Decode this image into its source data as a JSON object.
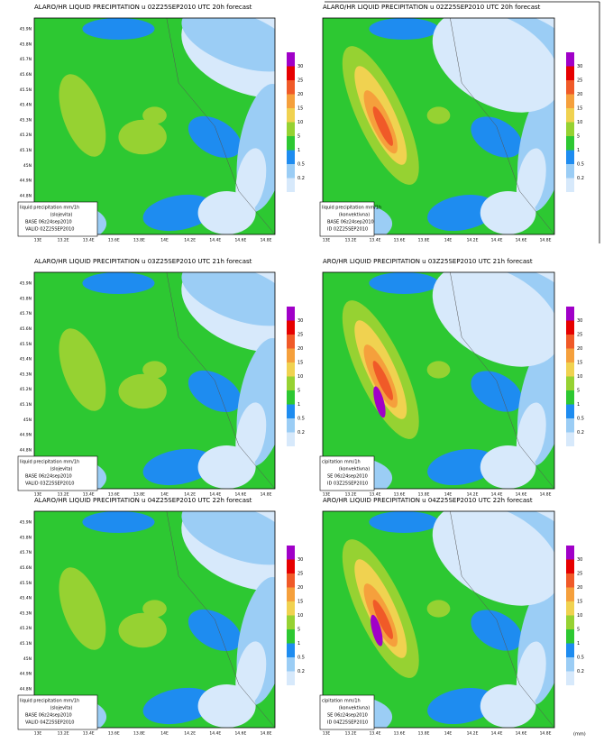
{
  "panels": [
    {
      "title": "ALARO/HR LIQUID PRECIPITATION u 02Z25SEP2010 UTC 20h forecast",
      "info": [
        "liquid precipitation mm/1h",
        "(slojevita)",
        "BASE 06z24sep2010",
        "VALID 02Z25SEP2010"
      ]
    },
    {
      "title": "ALARO/HR LIQUID PRECIPITATION u 02Z25SEP2010 UTC 20h forecast",
      "info": [
        "liquid precipitation mm/1h",
        "(konvektivna)",
        "BASE 06z24sep2010",
        "ID 02Z25SEP2010"
      ]
    },
    {
      "title": "ALARO/HR LIQUID PRECIPITATION u 03Z25SEP2010 UTC 21h forecast",
      "info": [
        "liquid precipitation mm/1h",
        "(slojevita)",
        "BASE 06z24sep2010",
        "VALID 03Z25SEP2010"
      ]
    },
    {
      "title": "ARO/HR LIQUID PRECIPITATION u 03Z25SEP2010 UTC 21h forecast",
      "info": [
        "cipitation mm/1h",
        "(konvektivna)",
        "SE 06z24sep2010",
        "ID 03Z25SEP2010"
      ]
    },
    {
      "title": "ALARO/HR LIQUID PRECIPITATION u 04Z25SEP2010 UTC 22h forecast",
      "info": [
        "liquid precipitation mm/1h",
        "(slojevita)",
        "BASE 06z24sep2010",
        "VALID 04Z25SEP2010"
      ]
    },
    {
      "title": "ARO/HR LIQUID PRECIPITATION u 04Z25SEP2010 UTC 22h forecast",
      "info": [
        "cipitation mm/1h",
        "(konvektivna)",
        "SE 06z24sep2010",
        "ID 04Z25SEP2010"
      ]
    }
  ],
  "lat_labels": [
    "45.9N",
    "45.8N",
    "45.7N",
    "45.6N",
    "45.5N",
    "45.4N",
    "45.3N",
    "45.2N",
    "45.1N",
    "45N",
    "44.9N",
    "44.8N"
  ],
  "lon_labels": [
    "13E",
    "13.2E",
    "13.4E",
    "13.6E",
    "13.8E",
    "14E",
    "14.2E",
    "14.4E",
    "14.6E",
    "14.8E"
  ],
  "colorbar": {
    "labels": [
      "30",
      "25",
      "20",
      "15",
      "10",
      "5",
      "1",
      "0.5",
      "0.2"
    ],
    "colors": [
      "#a000c8",
      "#e60000",
      "#f05a28",
      "#f5a03c",
      "#f0d250",
      "#96d232",
      "#2dc832",
      "#1e8cf0",
      "#9bcdf5",
      "#d7e9fb"
    ]
  },
  "units": "(mm)"
}
